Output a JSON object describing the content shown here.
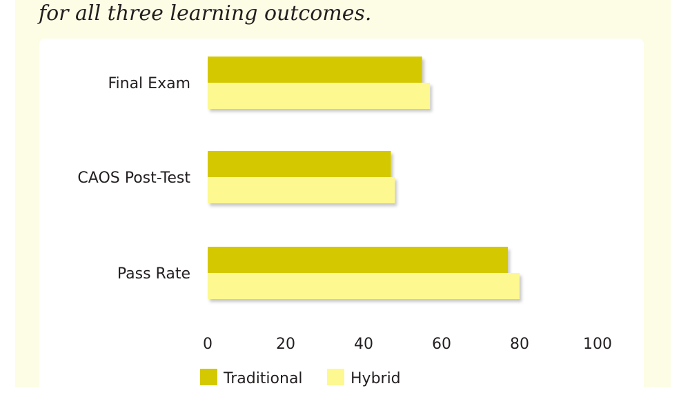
{
  "subtitle": "for all three learning outcomes.",
  "colors": {
    "traditional": "#d4c800",
    "hybrid": "#fdf890",
    "background": "#fdfde6",
    "panel": "#ffffff",
    "text": "#231f20"
  },
  "chart_data": {
    "type": "bar",
    "orientation": "horizontal",
    "categories": [
      "Final Exam",
      "CAOS Post-Test",
      "Pass Rate"
    ],
    "series": [
      {
        "name": "Traditional",
        "values": [
          55,
          47,
          77
        ]
      },
      {
        "name": "Hybrid",
        "values": [
          57,
          48,
          80
        ]
      }
    ],
    "xlim": [
      0,
      100
    ],
    "xticks": [
      0,
      20,
      40,
      60,
      80,
      100
    ],
    "grid": false,
    "legend": "bottom"
  }
}
